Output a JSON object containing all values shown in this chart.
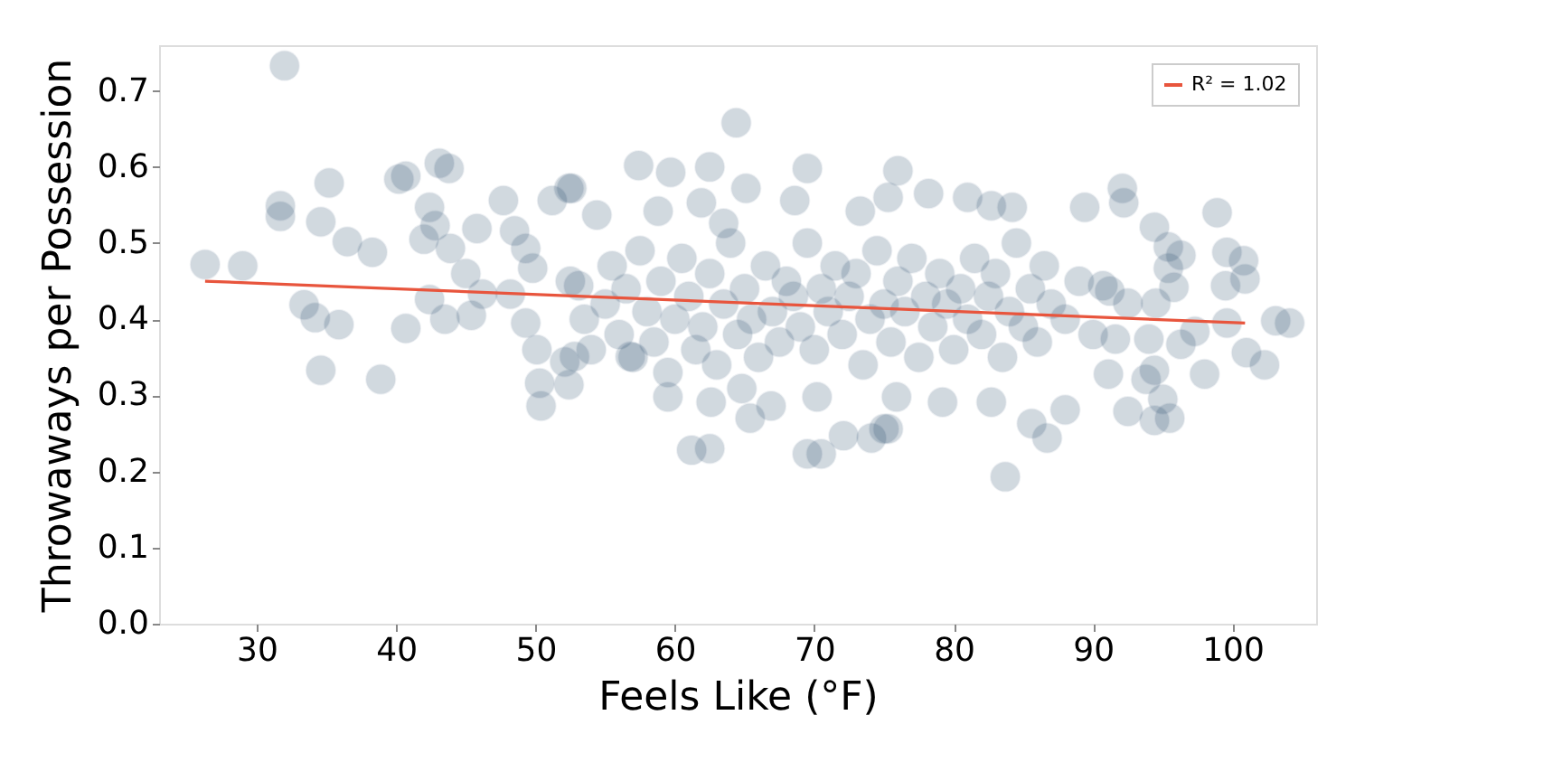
{
  "chart_data": {
    "type": "scatter",
    "xlabel": "Feels Like (°F)",
    "ylabel": "Throwaways per Possession",
    "xlim": [
      23,
      106
    ],
    "ylim": [
      0,
      0.76
    ],
    "xticks": [
      30,
      40,
      50,
      60,
      70,
      80,
      90,
      100
    ],
    "yticks": [
      {
        "value": 0,
        "label": "0.0"
      },
      {
        "value": 0.1,
        "label": "0.1"
      },
      {
        "value": 0.2,
        "label": "0.2"
      },
      {
        "value": 0.3,
        "label": "0.3"
      },
      {
        "value": 0.4,
        "label": "0.4"
      },
      {
        "value": 0.5,
        "label": "0.5"
      },
      {
        "value": 0.6,
        "label": "0.6"
      },
      {
        "value": 0.7,
        "label": "0.7"
      }
    ],
    "grid": false,
    "legend": "top right",
    "series": [
      {
        "color": "#1f4466",
        "marker": "circle",
        "x": [
          32.0,
          26.3,
          29.0,
          31.7,
          31.7,
          35.2,
          34.6,
          36.5,
          38.3,
          33.4,
          34.2,
          35.9,
          34.6,
          38.9,
          40.2,
          40.7,
          43.1,
          43.8,
          42.4,
          42.8,
          42.0,
          43.9,
          45.8,
          40.7,
          42.4,
          43.5,
          45.0,
          46.2,
          45.4,
          47.7,
          48.5,
          51.2,
          52.4,
          49.3,
          49.8,
          48.2,
          49.3,
          50.1,
          50.3,
          50.4,
          53.1,
          52.1,
          64.4,
          57.4,
          59.7,
          62.5,
          69.5,
          76.0,
          52.6,
          61.9,
          65.1,
          68.6,
          75.3,
          54.4,
          58.8,
          63.5,
          73.3,
          61.2,
          62.5,
          69.5,
          70.5,
          59.5,
          62.6,
          65.4,
          66.9,
          72.1,
          74.1,
          75.0,
          70.2,
          75.9,
          52.4,
          56.8,
          52.8,
          64.8,
          78.2,
          81.0,
          82.7,
          84.2,
          92.1,
          92.2,
          98.9,
          89.4,
          94.4,
          95.4,
          96.3,
          99.6,
          100.8,
          100.9,
          99.5,
          95.8,
          94.5,
          91.2,
          103.1,
          104.1,
          99.6,
          101.0,
          102.3,
          98.0,
          96.3,
          97.3,
          94.4,
          93.8,
          95.0,
          95.5,
          94.4,
          92.5,
          91.1,
          91.6,
          94.0,
          85.6,
          86.7,
          83.7,
          79.2,
          82.7,
          75.3,
          88.0,
          95.4,
          90.7,
          92.5,
          52.5,
          53.5,
          54.0,
          55.0,
          55.5,
          56.0,
          56.5,
          57.0,
          57.5,
          58.0,
          58.5,
          59.0,
          59.5,
          60.0,
          60.5,
          61.0,
          61.5,
          62.0,
          62.5,
          63.0,
          63.5,
          64.0,
          64.5,
          65.0,
          65.5,
          66.0,
          66.5,
          67.0,
          67.5,
          68.0,
          68.5,
          69.0,
          69.5,
          70.0,
          70.5,
          71.0,
          71.5,
          72.0,
          72.5,
          73.0,
          73.5,
          74.0,
          74.5,
          75.0,
          75.5,
          76.0,
          76.5,
          77.0,
          77.5,
          78.0,
          78.5,
          79.0,
          79.5,
          80.0,
          80.5,
          81.0,
          81.5,
          82.0,
          82.5,
          83.0,
          83.5,
          84.0,
          84.5,
          85.0,
          85.5,
          86.0,
          86.5,
          87.0,
          88.0,
          89.0,
          90.0
        ],
        "values": [
          0.733,
          0.472,
          0.47,
          0.549,
          0.535,
          0.579,
          0.528,
          0.502,
          0.488,
          0.419,
          0.402,
          0.393,
          0.333,
          0.321,
          0.584,
          0.588,
          0.605,
          0.598,
          0.547,
          0.523,
          0.505,
          0.493,
          0.519,
          0.388,
          0.426,
          0.4,
          0.46,
          0.433,
          0.405,
          0.556,
          0.516,
          0.556,
          0.572,
          0.493,
          0.467,
          0.433,
          0.395,
          0.36,
          0.316,
          0.286,
          0.444,
          0.344,
          0.658,
          0.602,
          0.593,
          0.6,
          0.598,
          0.595,
          0.572,
          0.553,
          0.572,
          0.556,
          0.56,
          0.537,
          0.542,
          0.526,
          0.542,
          0.228,
          0.23,
          0.223,
          0.223,
          0.298,
          0.291,
          0.27,
          0.286,
          0.247,
          0.244,
          0.256,
          0.298,
          0.298,
          0.314,
          0.351,
          0.351,
          0.309,
          0.565,
          0.56,
          0.549,
          0.547,
          0.572,
          0.553,
          0.54,
          0.547,
          0.521,
          0.495,
          0.484,
          0.488,
          0.477,
          0.453,
          0.444,
          0.442,
          0.421,
          0.437,
          0.398,
          0.395,
          0.395,
          0.356,
          0.34,
          0.328,
          0.367,
          0.384,
          0.333,
          0.321,
          0.295,
          0.27,
          0.267,
          0.279,
          0.328,
          0.374,
          0.374,
          0.263,
          0.244,
          0.193,
          0.291,
          0.291,
          0.256,
          0.281,
          0.467,
          0.444,
          0.421,
          0.45,
          0.4,
          0.36,
          0.42,
          0.47,
          0.38,
          0.44,
          0.35,
          0.49,
          0.41,
          0.37,
          0.45,
          0.33,
          0.4,
          0.48,
          0.43,
          0.36,
          0.39,
          0.46,
          0.34,
          0.42,
          0.5,
          0.38,
          0.44,
          0.4,
          0.35,
          0.47,
          0.41,
          0.37,
          0.45,
          0.43,
          0.39,
          0.5,
          0.36,
          0.44,
          0.41,
          0.47,
          0.38,
          0.43,
          0.46,
          0.34,
          0.4,
          0.49,
          0.42,
          0.37,
          0.45,
          0.41,
          0.48,
          0.35,
          0.43,
          0.39,
          0.46,
          0.42,
          0.36,
          0.44,
          0.4,
          0.48,
          0.38,
          0.43,
          0.46,
          0.35,
          0.41,
          0.5,
          0.39,
          0.44,
          0.37,
          0.47,
          0.42,
          0.4,
          0.45,
          0.38
        ]
      },
      {
        "type": "line",
        "name": "R² = 1.02",
        "color": "#e8553d",
        "x": [
          26.3,
          100.9
        ],
        "values": [
          0.45,
          0.395
        ]
      }
    ]
  }
}
